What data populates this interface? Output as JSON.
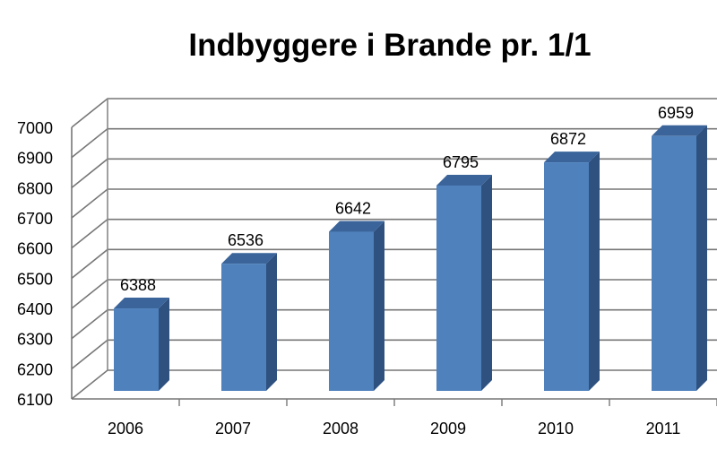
{
  "chart_data": {
    "type": "bar",
    "title": "Indbyggere i Brande pr. 1/1",
    "xlabel": "",
    "ylabel": "",
    "categories": [
      "2006",
      "2007",
      "2008",
      "2009",
      "2010",
      "2011"
    ],
    "values": [
      6388,
      6536,
      6642,
      6795,
      6872,
      6959
    ],
    "data_labels": [
      "6388",
      "6536",
      "6642",
      "6795",
      "6872",
      "6959"
    ],
    "ylim": [
      6100,
      7000
    ],
    "y_ticks": [
      6100,
      6200,
      6300,
      6400,
      6500,
      6600,
      6700,
      6800,
      6900,
      7000
    ],
    "grid": true,
    "legend": "none",
    "style": "3d-column",
    "colors": {
      "bar_front": "#4F81BD",
      "bar_side": "#2E5180",
      "bar_top": "#3A649A"
    }
  }
}
